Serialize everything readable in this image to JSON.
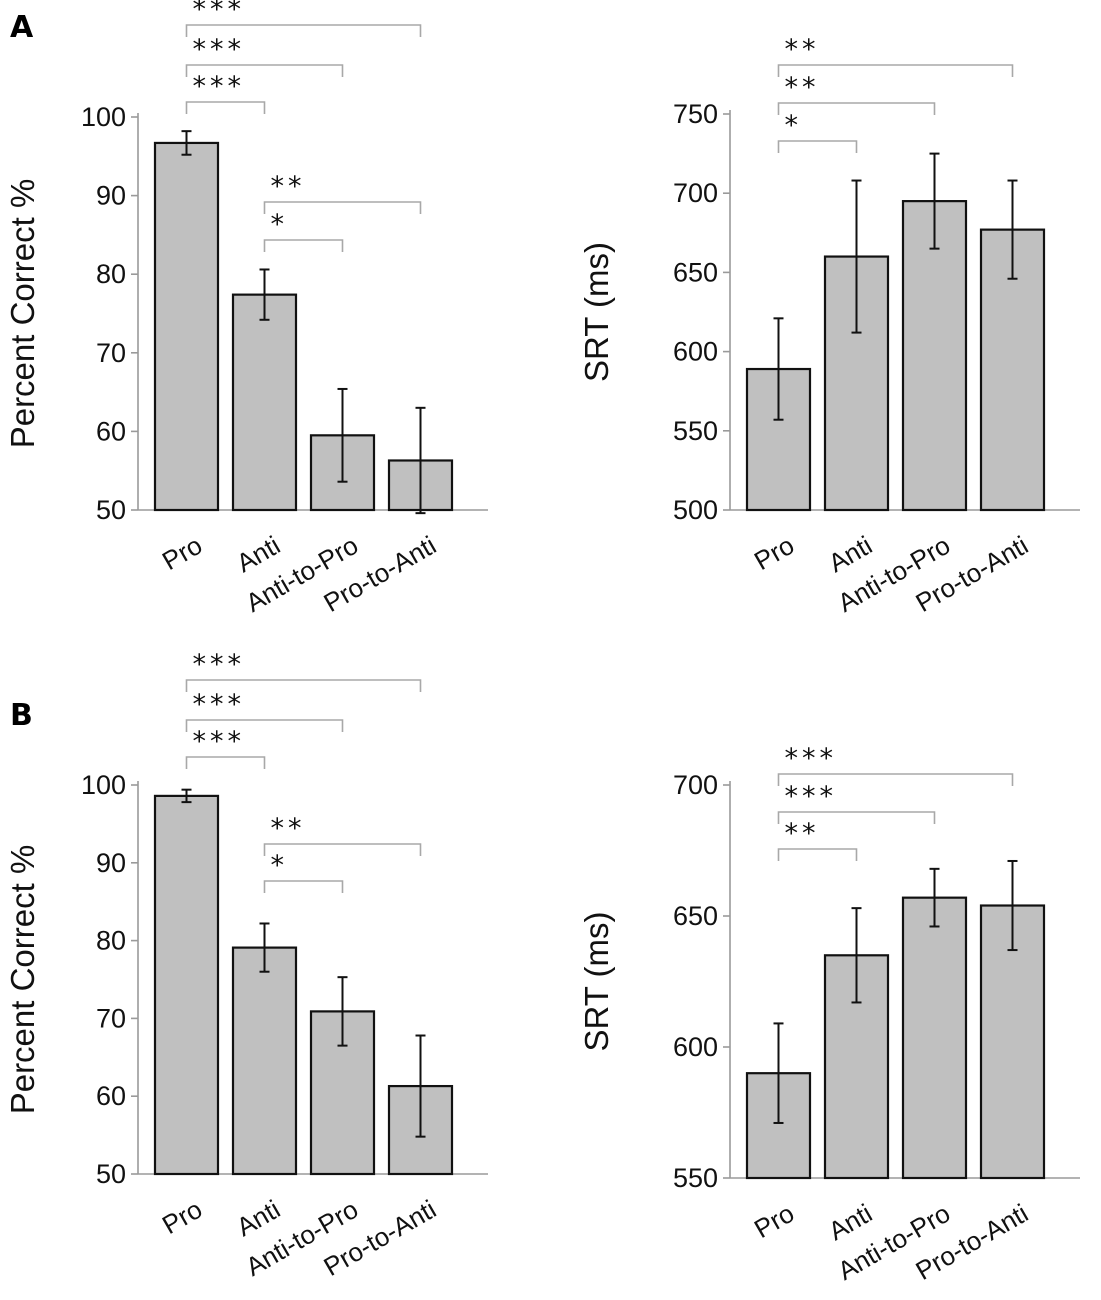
{
  "panel_labels": [
    "A",
    "B"
  ],
  "chart_data": [
    {
      "id": "A-accuracy",
      "panel": "A",
      "type": "bar",
      "categories": [
        "Pro",
        "Anti",
        "Anti-to-Pro",
        "Pro-to-Anti"
      ],
      "values": [
        96.7,
        77.4,
        59.5,
        56.3
      ],
      "errors": [
        1.5,
        3.2,
        5.9,
        6.7
      ],
      "ylabel": "Percent Correct %",
      "xlabel": "",
      "ylim": [
        50,
        100
      ],
      "yticks": [
        50,
        60,
        70,
        80,
        90,
        100
      ],
      "tick_labels": [
        "50",
        "60",
        "70",
        "80",
        "90",
        "100"
      ],
      "significance": [
        {
          "from": 0,
          "to": 1,
          "label": "***"
        },
        {
          "from": 0,
          "to": 2,
          "label": "***"
        },
        {
          "from": 0,
          "to": 3,
          "label": "***"
        },
        {
          "from": 1,
          "to": 2,
          "label": "*"
        },
        {
          "from": 1,
          "to": 3,
          "label": "**"
        }
      ]
    },
    {
      "id": "A-srt",
      "panel": "A",
      "type": "bar",
      "categories": [
        "Pro",
        "Anti",
        "Anti-to-Pro",
        "Pro-to-Anti"
      ],
      "values": [
        589,
        660,
        695,
        677
      ],
      "errors": [
        32,
        48,
        30,
        31
      ],
      "ylabel": "SRT (ms)",
      "xlabel": "",
      "ylim": [
        500,
        750
      ],
      "yticks": [
        500,
        550,
        600,
        650,
        700,
        750
      ],
      "tick_labels": [
        "500",
        "550",
        "600",
        "650",
        "700",
        "750"
      ],
      "significance": [
        {
          "from": 0,
          "to": 1,
          "label": "*"
        },
        {
          "from": 0,
          "to": 2,
          "label": "**"
        },
        {
          "from": 0,
          "to": 3,
          "label": "**"
        }
      ]
    },
    {
      "id": "B-accuracy",
      "panel": "B",
      "type": "bar",
      "categories": [
        "Pro",
        "Anti",
        "Anti-to-Pro",
        "Pro-to-Anti"
      ],
      "values": [
        98.6,
        79.1,
        70.9,
        61.3
      ],
      "errors": [
        0.8,
        3.1,
        4.4,
        6.5
      ],
      "ylabel": "Percent Correct %",
      "xlabel": "",
      "ylim": [
        50,
        100
      ],
      "yticks": [
        50,
        60,
        70,
        80,
        90,
        100
      ],
      "tick_labels": [
        "50",
        "60",
        "70",
        "80",
        "90",
        "100"
      ],
      "significance": [
        {
          "from": 0,
          "to": 1,
          "label": "***"
        },
        {
          "from": 0,
          "to": 2,
          "label": "***"
        },
        {
          "from": 0,
          "to": 3,
          "label": "***"
        },
        {
          "from": 1,
          "to": 2,
          "label": "*"
        },
        {
          "from": 1,
          "to": 3,
          "label": "**"
        }
      ]
    },
    {
      "id": "B-srt",
      "panel": "B",
      "type": "bar",
      "categories": [
        "Pro",
        "Anti",
        "Anti-to-Pro",
        "Pro-to-Anti"
      ],
      "values": [
        590,
        635,
        657,
        654
      ],
      "errors": [
        19,
        18,
        11,
        17
      ],
      "ylabel": "SRT (ms)",
      "xlabel": "",
      "ylim": [
        550,
        700
      ],
      "yticks": [
        550,
        600,
        650,
        700
      ],
      "tick_labels": [
        "550",
        "600",
        "650",
        "700"
      ],
      "significance": [
        {
          "from": 0,
          "to": 1,
          "label": "**"
        },
        {
          "from": 0,
          "to": 2,
          "label": "***"
        },
        {
          "from": 0,
          "to": 3,
          "label": "***"
        }
      ]
    }
  ]
}
